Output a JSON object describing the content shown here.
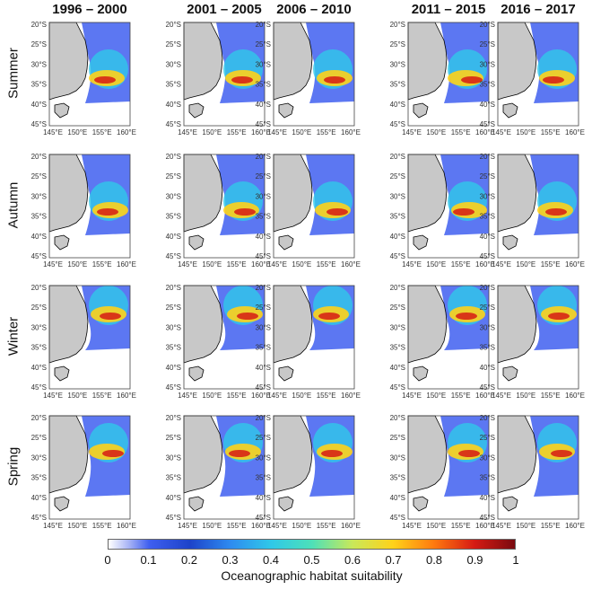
{
  "figure": {
    "columns": [
      "1996 – 2000",
      "2001 – 2005",
      "2006 – 2010",
      "2011 – 2015",
      "2016 – 2017"
    ],
    "rows": [
      "Summer",
      "Autumn",
      "Winter",
      "Spring"
    ],
    "lat_ticks": [
      "20°S",
      "25°S",
      "30°S",
      "35°S",
      "40°S",
      "45°S"
    ],
    "lon_ticks": [
      "145°E",
      "150°E",
      "155°E",
      "160°E"
    ],
    "colorbar": {
      "label": "Oceanographic habitat suitability",
      "ticks": [
        "0",
        "0.1",
        "0.2",
        "0.3",
        "0.4",
        "0.5",
        "0.6",
        "0.7",
        "0.8",
        "0.9",
        "1"
      ],
      "colors": {
        "land": "#c8c8c8",
        "low": "#3f5ff0",
        "mid": "#2fc8e8",
        "mid_high": "#ffd21a",
        "high": "#d61b14"
      }
    }
  }
}
